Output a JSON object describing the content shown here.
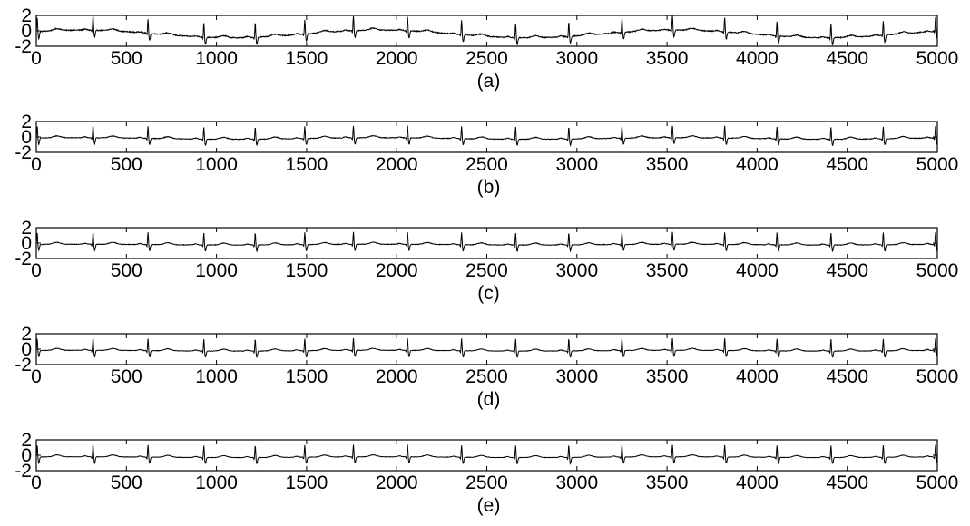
{
  "chart_data": [
    {
      "type": "line",
      "caption": "(a)",
      "xlim": [
        0,
        5000
      ],
      "ylim": [
        -2,
        2
      ],
      "xticks": [
        0,
        500,
        1000,
        1500,
        2000,
        2500,
        3000,
        3500,
        4000,
        4500,
        5000
      ],
      "yticks": [
        -2,
        0,
        2
      ],
      "line_color": "#000000",
      "baseline": -0.4,
      "wander": 0.5,
      "r_height": 1.9,
      "s_depth": 0.9,
      "noise": 0.12,
      "beats": [
        5,
        315,
        620,
        930,
        1215,
        1490,
        1760,
        2060,
        2360,
        2660,
        2955,
        3250,
        3530,
        3820,
        4110,
        4410,
        4700,
        4990
      ]
    },
    {
      "type": "line",
      "caption": "(b)",
      "xlim": [
        0,
        5000
      ],
      "ylim": [
        -2,
        2
      ],
      "xticks": [
        0,
        500,
        1000,
        1500,
        2000,
        2500,
        3000,
        3500,
        4000,
        4500,
        5000
      ],
      "yticks": [
        -2,
        0,
        2
      ],
      "line_color": "#000000",
      "baseline": -0.2,
      "wander": 0.1,
      "r_height": 1.6,
      "s_depth": 0.8,
      "noise": 0.08,
      "beats": [
        5,
        315,
        620,
        930,
        1215,
        1490,
        1760,
        2060,
        2360,
        2660,
        2955,
        3250,
        3530,
        3820,
        4110,
        4410,
        4700,
        4990
      ]
    },
    {
      "type": "line",
      "caption": "(c)",
      "xlim": [
        0,
        5000
      ],
      "ylim": [
        -2,
        2
      ],
      "xticks": [
        0,
        500,
        1000,
        1500,
        2000,
        2500,
        3000,
        3500,
        4000,
        4500,
        5000
      ],
      "yticks": [
        -2,
        0,
        2
      ],
      "line_color": "#000000",
      "baseline": -0.2,
      "wander": 0.05,
      "r_height": 1.6,
      "s_depth": 0.8,
      "noise": 0.07,
      "beats": [
        5,
        315,
        620,
        930,
        1215,
        1490,
        1760,
        2060,
        2360,
        2660,
        2955,
        3250,
        3530,
        3820,
        4110,
        4410,
        4700,
        4990
      ]
    },
    {
      "type": "line",
      "caption": "(d)",
      "xlim": [
        0,
        5000
      ],
      "ylim": [
        -2,
        2
      ],
      "xticks": [
        0,
        500,
        1000,
        1500,
        2000,
        2500,
        3000,
        3500,
        4000,
        4500,
        5000
      ],
      "yticks": [
        -2,
        0,
        2
      ],
      "line_color": "#000000",
      "baseline": -0.2,
      "wander": 0.05,
      "r_height": 1.6,
      "s_depth": 0.8,
      "noise": 0.06,
      "beats": [
        5,
        315,
        620,
        930,
        1215,
        1490,
        1760,
        2060,
        2360,
        2660,
        2955,
        3250,
        3530,
        3820,
        4110,
        4410,
        4700,
        4990
      ]
    },
    {
      "type": "line",
      "caption": "(e)",
      "xlim": [
        0,
        5000
      ],
      "ylim": [
        -2,
        2
      ],
      "xticks": [
        0,
        500,
        1000,
        1500,
        2000,
        2500,
        3000,
        3500,
        4000,
        4500,
        5000
      ],
      "yticks": [
        -2,
        0,
        2
      ],
      "line_color": "#000000",
      "baseline": -0.25,
      "wander": 0.05,
      "r_height": 1.6,
      "s_depth": 0.8,
      "noise": 0.05,
      "beats": [
        5,
        315,
        620,
        930,
        1215,
        1490,
        1760,
        2060,
        2360,
        2660,
        2955,
        3250,
        3530,
        3820,
        4110,
        4410,
        4700,
        4990
      ]
    }
  ]
}
